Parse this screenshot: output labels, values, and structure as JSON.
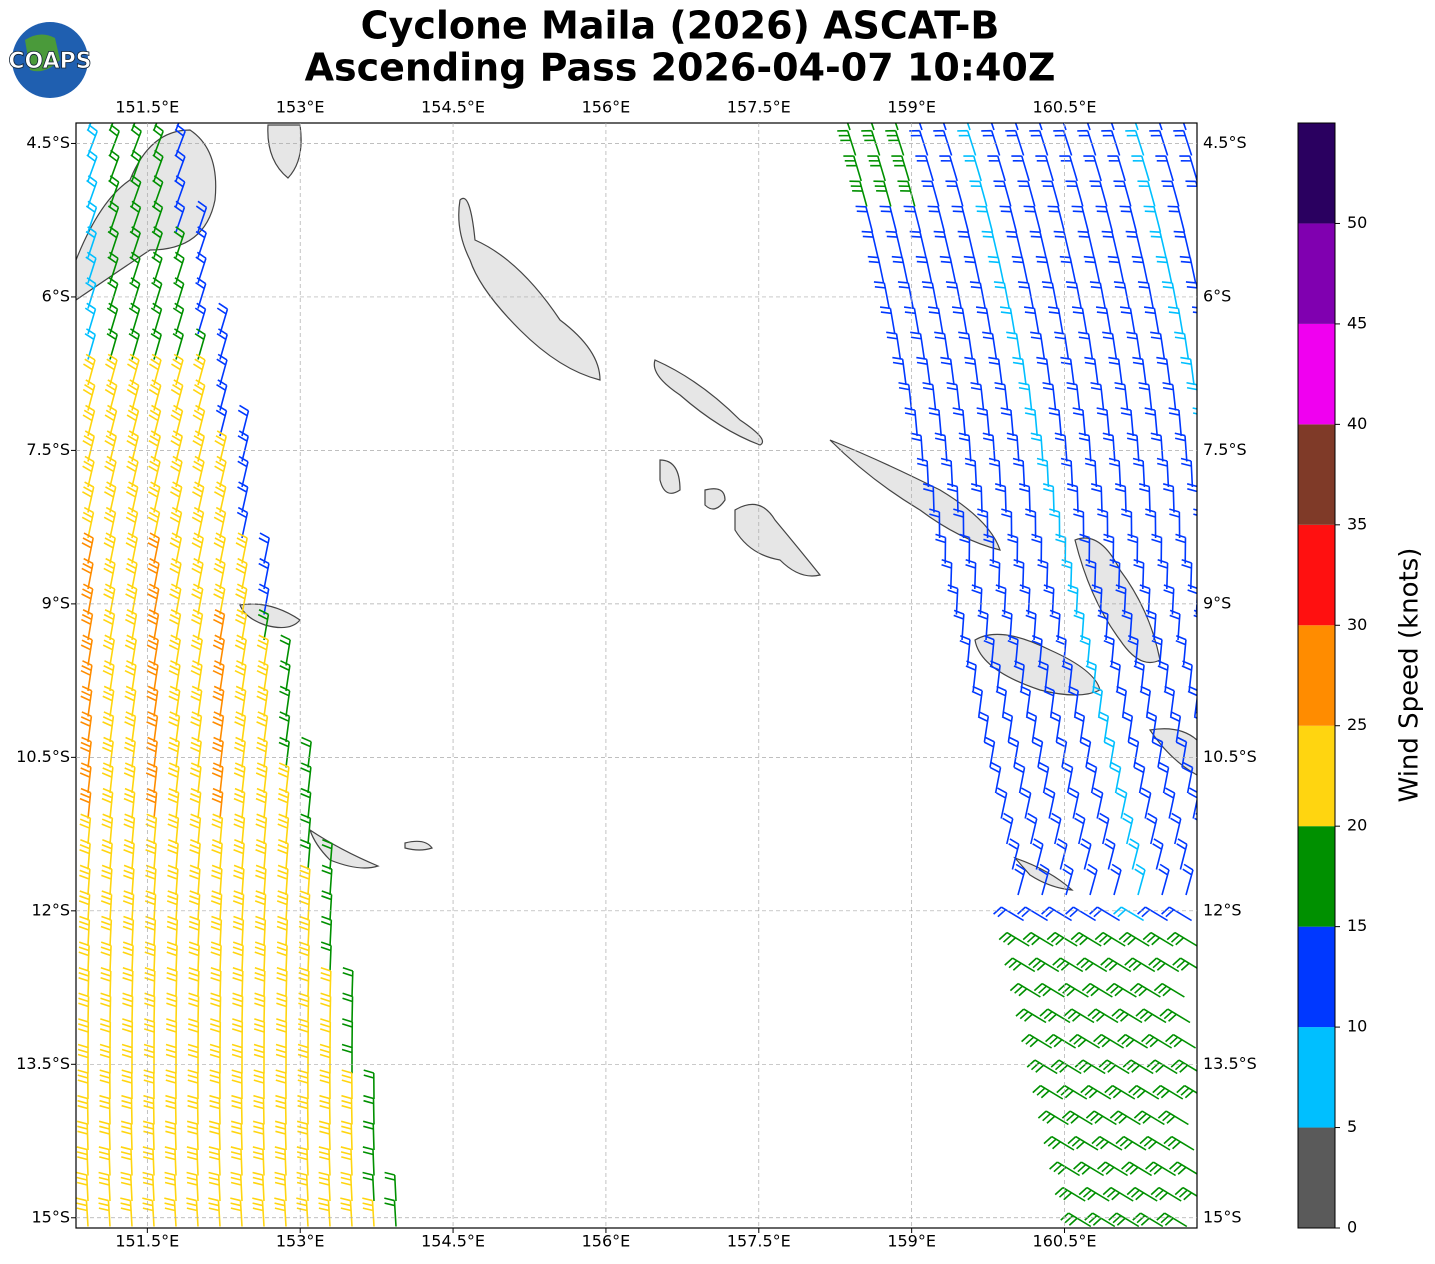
{
  "chart_data": {
    "type": "map",
    "title": "Cyclone Maila (2026) ASCAT-B",
    "subtitle": "Ascending Pass 2026-04-07 10:40Z",
    "logo": "COAPS",
    "xlim": [
      150.8,
      161.8
    ],
    "ylim": [
      -15.1,
      -4.3
    ],
    "xticks": [
      {
        "value": 151.5,
        "label": "151.5°E"
      },
      {
        "value": 153,
        "label": "153°E"
      },
      {
        "value": 154.5,
        "label": "154.5°E"
      },
      {
        "value": 156,
        "label": "156°E"
      },
      {
        "value": 157.5,
        "label": "157.5°E"
      },
      {
        "value": 159,
        "label": "159°E"
      },
      {
        "value": 160.5,
        "label": "160.5°E"
      }
    ],
    "yticks": [
      {
        "value": -4.5,
        "label": "4.5°S"
      },
      {
        "value": -6,
        "label": "6°S"
      },
      {
        "value": -7.5,
        "label": "7.5°S"
      },
      {
        "value": -9,
        "label": "9°S"
      },
      {
        "value": -10.5,
        "label": "10.5°S"
      },
      {
        "value": -12,
        "label": "12°S"
      },
      {
        "value": -13.5,
        "label": "13.5°S"
      },
      {
        "value": -15,
        "label": "15°S"
      }
    ],
    "grid": true,
    "colorbar": {
      "label": "Wind Speed (knots)",
      "bounds": [
        0,
        5,
        10,
        15,
        20,
        25,
        30,
        35,
        40,
        45,
        50,
        55
      ],
      "colors": [
        "#5a5a5a",
        "#00bfff",
        "#0038ff",
        "#009000",
        "#ffd510",
        "#ff8c00",
        "#ff1010",
        "#7f3a28",
        "#f000f0",
        "#8000b0",
        "#2a0060"
      ],
      "ticks": [
        0,
        5,
        10,
        15,
        20,
        25,
        30,
        35,
        40,
        45,
        50
      ]
    }
  }
}
